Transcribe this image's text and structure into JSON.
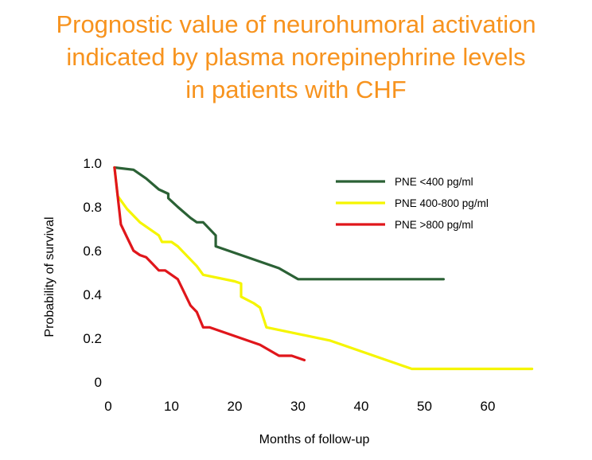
{
  "title": {
    "line1": "Prognostic value of neurohumoral activation",
    "line2": "indicated by plasma norepinephrine levels",
    "line3": "in patients with CHF",
    "color": "#f7931e"
  },
  "chart_data": {
    "type": "line",
    "xlabel": "Months of follow-up",
    "ylabel": "Probability of survival",
    "xlim": [
      0,
      70
    ],
    "ylim": [
      0,
      1.0
    ],
    "x_ticks": [
      "0",
      "10",
      "20",
      "30",
      "40",
      "50",
      "60"
    ],
    "y_ticks": [
      "0",
      "0.2",
      "0.4",
      "0.6",
      "0.8",
      "1.0"
    ],
    "grid": false,
    "axes_visible": false,
    "legend_position": "top-right",
    "series": [
      {
        "name": "PNE <400 pg/ml",
        "color": "#2b6135",
        "points": [
          [
            1,
            0.98
          ],
          [
            4,
            0.97
          ],
          [
            6,
            0.93
          ],
          [
            8,
            0.88
          ],
          [
            9.5,
            0.86
          ],
          [
            9.5,
            0.84
          ],
          [
            11,
            0.8
          ],
          [
            13,
            0.75
          ],
          [
            14,
            0.73
          ],
          [
            15,
            0.73
          ],
          [
            17,
            0.67
          ],
          [
            17,
            0.62
          ],
          [
            22,
            0.57
          ],
          [
            27,
            0.52
          ],
          [
            30,
            0.47
          ],
          [
            40,
            0.47
          ],
          [
            53,
            0.47
          ]
        ]
      },
      {
        "name": "PNE 400-800 pg/ml",
        "color": "#f5f500",
        "points": [
          [
            1,
            0.98
          ],
          [
            1.5,
            0.85
          ],
          [
            3,
            0.79
          ],
          [
            5,
            0.73
          ],
          [
            8,
            0.67
          ],
          [
            8.5,
            0.64
          ],
          [
            10,
            0.64
          ],
          [
            11,
            0.62
          ],
          [
            14,
            0.53
          ],
          [
            15,
            0.49
          ],
          [
            20,
            0.46
          ],
          [
            21,
            0.45
          ],
          [
            21,
            0.39
          ],
          [
            23,
            0.36
          ],
          [
            24,
            0.34
          ],
          [
            25,
            0.25
          ],
          [
            35,
            0.19
          ],
          [
            48,
            0.06
          ],
          [
            67,
            0.06
          ]
        ]
      },
      {
        "name": "PNE >800 pg/ml",
        "color": "#e0161b",
        "points": [
          [
            1,
            0.98
          ],
          [
            2,
            0.72
          ],
          [
            3,
            0.66
          ],
          [
            4,
            0.6
          ],
          [
            5,
            0.58
          ],
          [
            6,
            0.57
          ],
          [
            7,
            0.54
          ],
          [
            8,
            0.51
          ],
          [
            9,
            0.51
          ],
          [
            11,
            0.47
          ],
          [
            12,
            0.41
          ],
          [
            13,
            0.35
          ],
          [
            14,
            0.32
          ],
          [
            15,
            0.25
          ],
          [
            16,
            0.25
          ],
          [
            20,
            0.21
          ],
          [
            24,
            0.17
          ],
          [
            27,
            0.12
          ],
          [
            29,
            0.12
          ],
          [
            31,
            0.1
          ]
        ]
      }
    ]
  }
}
